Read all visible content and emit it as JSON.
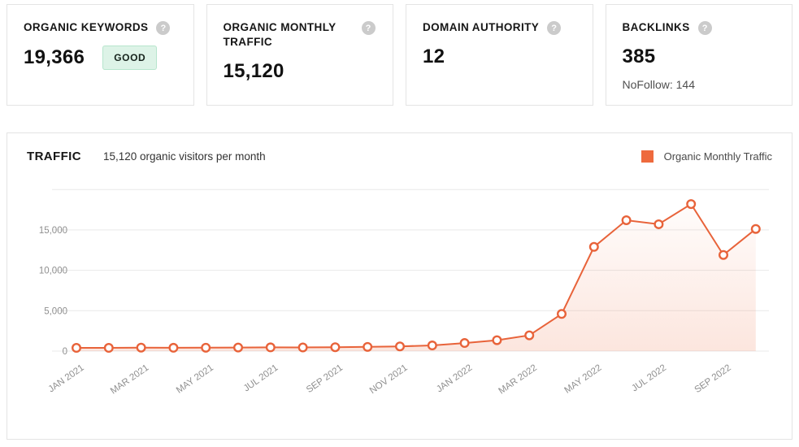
{
  "icons": {
    "help_glyph": "?"
  },
  "colors": {
    "accent_orange": "#ee6a3d",
    "line": "#e8633a",
    "grid": "#e9e9e9",
    "axis_text": "#8f8f8f",
    "badge_bg": "#ddf3e7",
    "badge_border": "#b7e5cd"
  },
  "cards": [
    {
      "title": "ORGANIC KEYWORDS",
      "value": "19,366",
      "badge": "GOOD"
    },
    {
      "title": "ORGANIC MONTHLY TRAFFIC",
      "value": "15,120"
    },
    {
      "title": "DOMAIN AUTHORITY",
      "value": "12"
    },
    {
      "title": "BACKLINKS",
      "value": "385",
      "subtext": "NoFollow: 144"
    }
  ],
  "traffic_panel": {
    "title": "TRAFFIC",
    "subtitle": "15,120 organic visitors per month",
    "legend": {
      "label": "Organic Monthly Traffic",
      "color": "#ee6a3d"
    }
  },
  "chart_data": {
    "type": "line",
    "title": "Organic Monthly Traffic",
    "categories": [
      "JAN 2021",
      "FEB 2021",
      "MAR 2021",
      "APR 2021",
      "MAY 2021",
      "JUN 2021",
      "JUL 2021",
      "AUG 2021",
      "SEP 2021",
      "OCT 2021",
      "NOV 2021",
      "DEC 2021",
      "JAN 2022",
      "FEB 2022",
      "MAR 2022",
      "APR 2022",
      "MAY 2022",
      "JUN 2022",
      "JUL 2022",
      "AUG 2022",
      "SEP 2022",
      "OCT 2022"
    ],
    "values": [
      400,
      400,
      430,
      410,
      420,
      440,
      460,
      450,
      480,
      520,
      580,
      700,
      1000,
      1350,
      1950,
      4600,
      12900,
      16200,
      15700,
      18200,
      11900,
      15120
    ],
    "x_tick_labels": [
      "JAN 2021",
      "MAR 2021",
      "MAY 2021",
      "JUL 2021",
      "SEP 2021",
      "NOV 2021",
      "JAN 2022",
      "MAR 2022",
      "MAY 2022",
      "JUL 2022",
      "SEP 2022"
    ],
    "x_tick_every": 2,
    "xlabel": "",
    "ylabel": "",
    "ylim": [
      0,
      20000
    ],
    "yticks": [
      0,
      5000,
      10000,
      15000
    ],
    "grid": true,
    "legend_position": "top-right",
    "marker": "open-circle",
    "area_fill": true
  }
}
